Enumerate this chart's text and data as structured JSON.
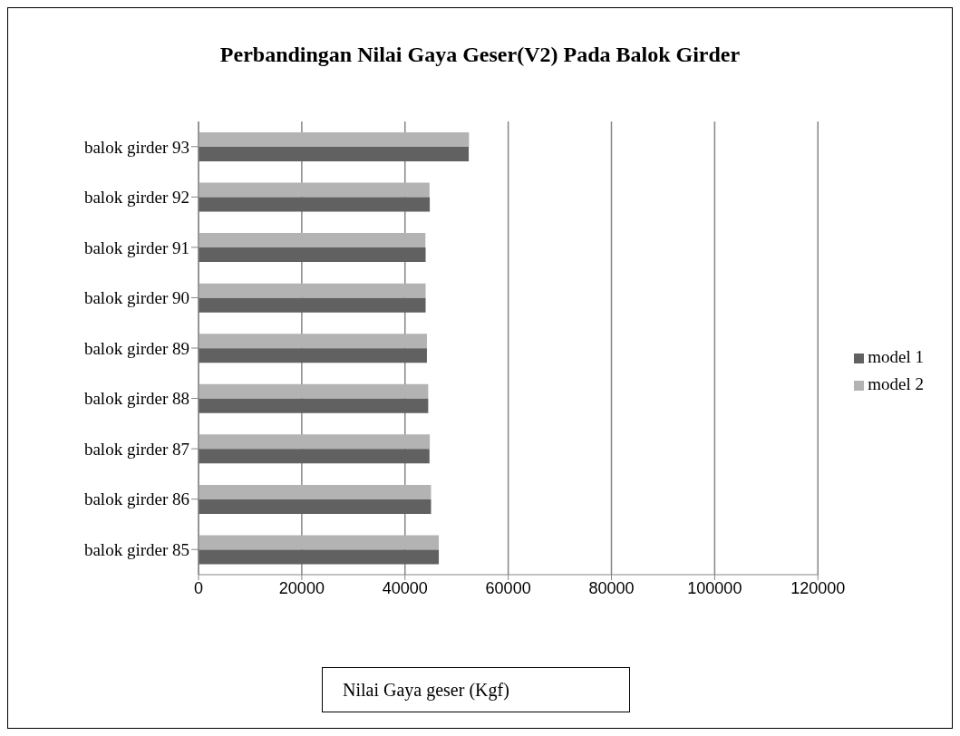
{
  "chart_data": {
    "type": "bar",
    "orientation": "horizontal",
    "title": "Perbandingan Nilai Gaya Geser(V2) Pada Balok Girder",
    "xlabel": "Nilai Gaya geser (Kgf)",
    "categories": [
      "balok girder 93",
      "balok girder 92",
      "balok girder 91",
      "balok girder 90",
      "balok girder 89",
      "balok girder 88",
      "balok girder 87",
      "balok girder 86",
      "balok girder 85"
    ],
    "series": [
      {
        "name": "model 2",
        "color": "#b3b3b3",
        "values": [
          52400,
          44750,
          43950,
          44000,
          44250,
          44500,
          44800,
          45050,
          46550
        ]
      },
      {
        "name": "model 1",
        "color": "#616161",
        "values": [
          52350,
          44800,
          44000,
          44000,
          44250,
          44500,
          44750,
          45050,
          46550
        ]
      }
    ],
    "xlim": [
      0,
      120000
    ],
    "xticks": [
      0,
      20000,
      40000,
      60000,
      80000,
      100000,
      120000
    ],
    "grid": "x",
    "legend": "right"
  }
}
